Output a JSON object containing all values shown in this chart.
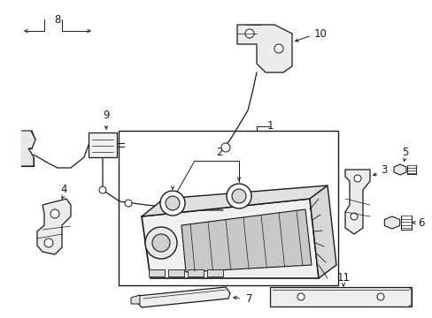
{
  "bg_color": "#ffffff",
  "lc": "#1a1a1a",
  "fig_w": 4.89,
  "fig_h": 3.6,
  "dpi": 100,
  "fs": 8.5
}
